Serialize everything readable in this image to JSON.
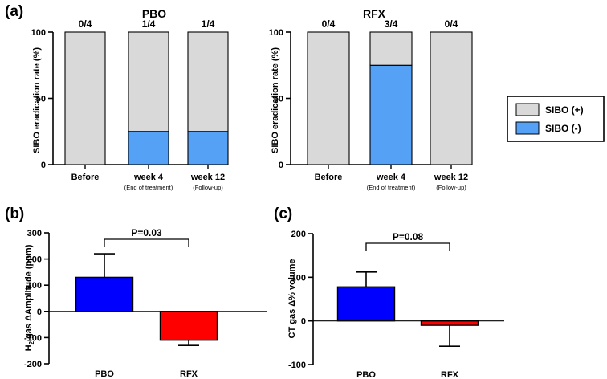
{
  "chart_data": [
    {
      "type": "bar",
      "panel_label": "(a)",
      "title": "PBO",
      "stacked": true,
      "ylabel": "SIBO eradication rate (%)",
      "ylim": [
        0,
        100
      ],
      "yticks": [
        "0",
        "50",
        "100"
      ],
      "categories": [
        "Before",
        "week 4",
        "week 12"
      ],
      "category_notes": [
        "",
        "(End of treatment)",
        "(Follow-up)"
      ],
      "bar_labels": [
        "0/4",
        "1/4",
        "1/4"
      ],
      "series": [
        {
          "name": "SIBO (-)",
          "color": "#55a1f5",
          "values": [
            0,
            25,
            25
          ]
        },
        {
          "name": "SIBO (+)",
          "color": "#d9d9d9",
          "values": [
            100,
            75,
            75
          ]
        }
      ]
    },
    {
      "type": "bar",
      "title": "RFX",
      "stacked": true,
      "ylabel": "SIBO eradication rate (%)",
      "ylim": [
        0,
        100
      ],
      "yticks": [
        "0",
        "50",
        "100"
      ],
      "categories": [
        "Before",
        "week 4",
        "week 12"
      ],
      "category_notes": [
        "",
        "(End of treatment)",
        "(Follow-up)"
      ],
      "bar_labels": [
        "0/4",
        "3/4",
        "0/4"
      ],
      "series": [
        {
          "name": "SIBO (-)",
          "color": "#55a1f5",
          "values": [
            0,
            75,
            0
          ]
        },
        {
          "name": "SIBO (+)",
          "color": "#d9d9d9",
          "values": [
            100,
            25,
            100
          ]
        }
      ]
    },
    {
      "type": "bar",
      "panel_label": "(b)",
      "ylabel_parts": [
        "H",
        "2",
        " gas ΔAmplitude (ppm)"
      ],
      "ylim": [
        -200,
        300
      ],
      "yticks": [
        "-200",
        "-100",
        "0",
        "100",
        "200",
        "300"
      ],
      "categories": [
        "PBO",
        "RFX"
      ],
      "values": [
        130,
        -110
      ],
      "errors": [
        90,
        20
      ],
      "colors": [
        "#0000ff",
        "#ff0000"
      ],
      "annotation": "P=0.03"
    },
    {
      "type": "bar",
      "panel_label": "(c)",
      "ylabel": "CT gas Δ% volume",
      "ylim": [
        -100,
        200
      ],
      "yticks": [
        "-100",
        "0",
        "100",
        "200"
      ],
      "categories": [
        "PBO",
        "RFX"
      ],
      "values": [
        78,
        -10
      ],
      "errors": [
        34,
        48
      ],
      "colors": [
        "#0000ff",
        "#ff0000"
      ],
      "annotation": "P=0.08"
    }
  ],
  "legend": {
    "items": [
      {
        "label": "SIBO (+)",
        "color": "#d9d9d9"
      },
      {
        "label": "SIBO (-)",
        "color": "#55a1f5"
      }
    ]
  }
}
